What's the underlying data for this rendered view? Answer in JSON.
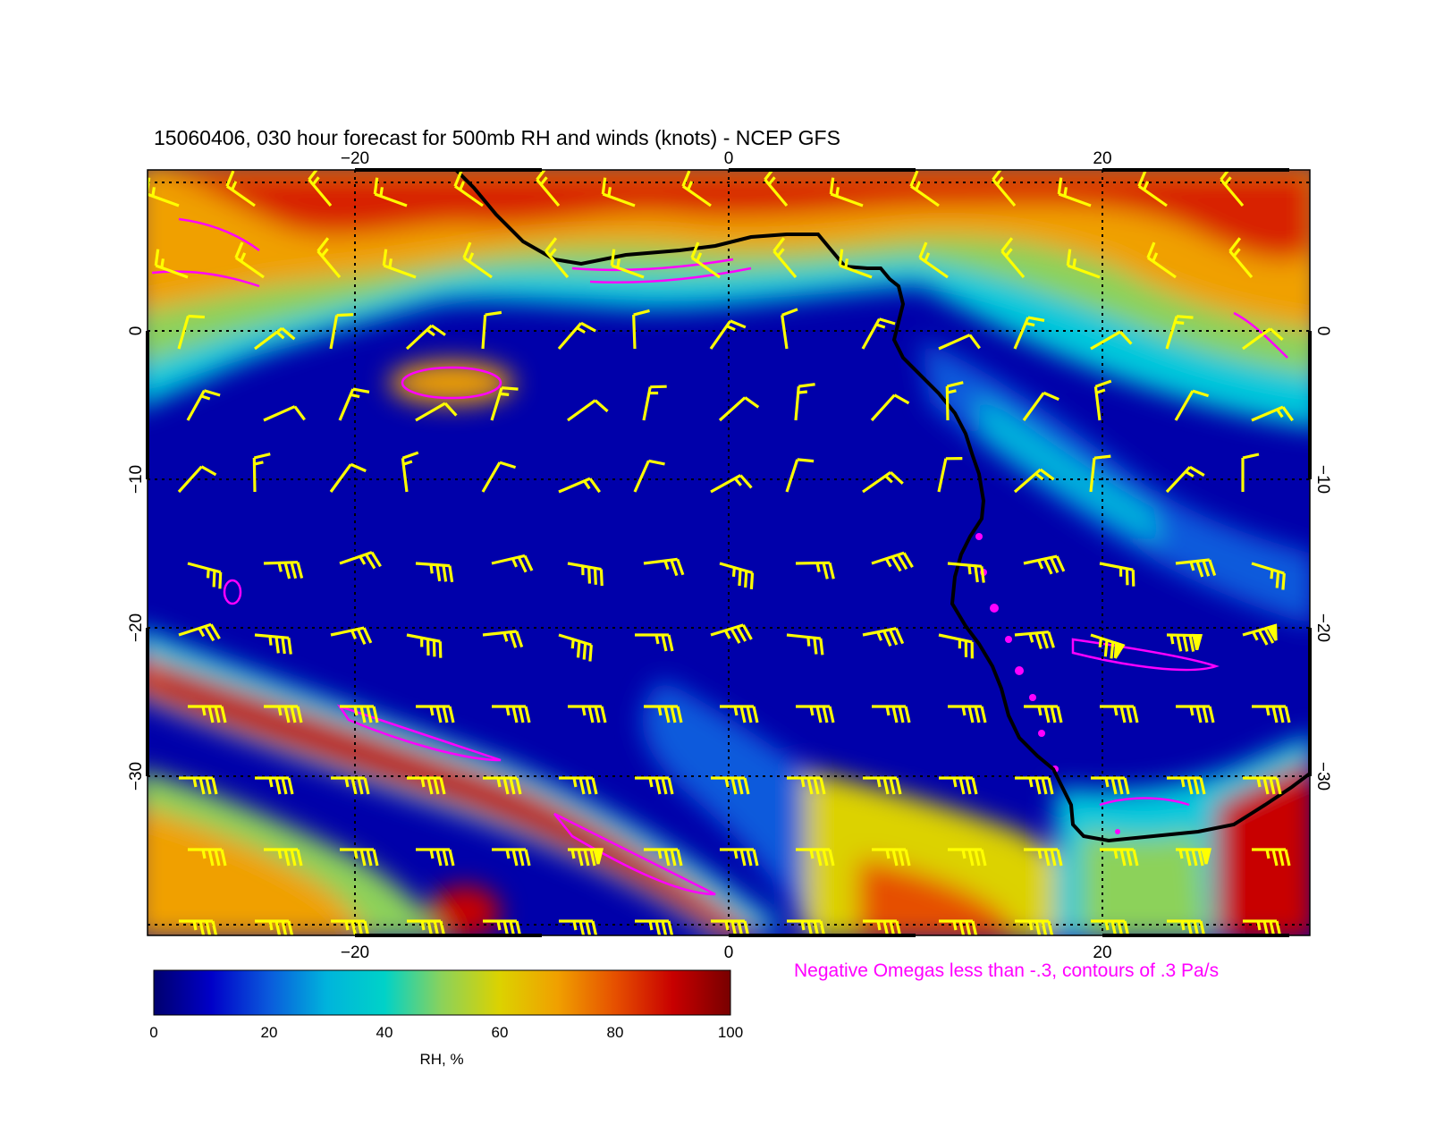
{
  "title": "15060406, 030 hour forecast for 500mb RH and winds (knots) - NCEP GFS",
  "omega_note": "Negative Omegas less than -.3, contours of .3 Pa/s",
  "map": {
    "lon_range": [
      -31,
      31
    ],
    "lat_range": [
      -40,
      10
    ],
    "lon_ticks": [
      {
        "value": -20,
        "label": "−20"
      },
      {
        "value": 0,
        "label": "0"
      },
      {
        "value": 20,
        "label": "20"
      }
    ],
    "lat_ticks": [
      {
        "value": 0,
        "label": "0"
      },
      {
        "value": -10,
        "label": "−10"
      },
      {
        "value": -20,
        "label": "−20"
      },
      {
        "value": -30,
        "label": "−30"
      }
    ],
    "graticule_lons": [
      -20,
      0,
      20
    ],
    "graticule_lats": [
      10,
      0,
      -10,
      -20,
      -30,
      -40
    ]
  },
  "colorbar": {
    "label": "RH, %",
    "ticks": [
      "0",
      "20",
      "40",
      "60",
      "80",
      "100"
    ],
    "colors": [
      "#00006e",
      "#0000c8",
      "#0a5adc",
      "#00b4dc",
      "#00d2c8",
      "#8cd25a",
      "#dcd200",
      "#f0a000",
      "#e65000",
      "#c80000",
      "#780000"
    ]
  },
  "colors": {
    "wind_barb": "#ffff00",
    "omega_contour": "#ff00ff",
    "coastline": "#000000"
  }
}
